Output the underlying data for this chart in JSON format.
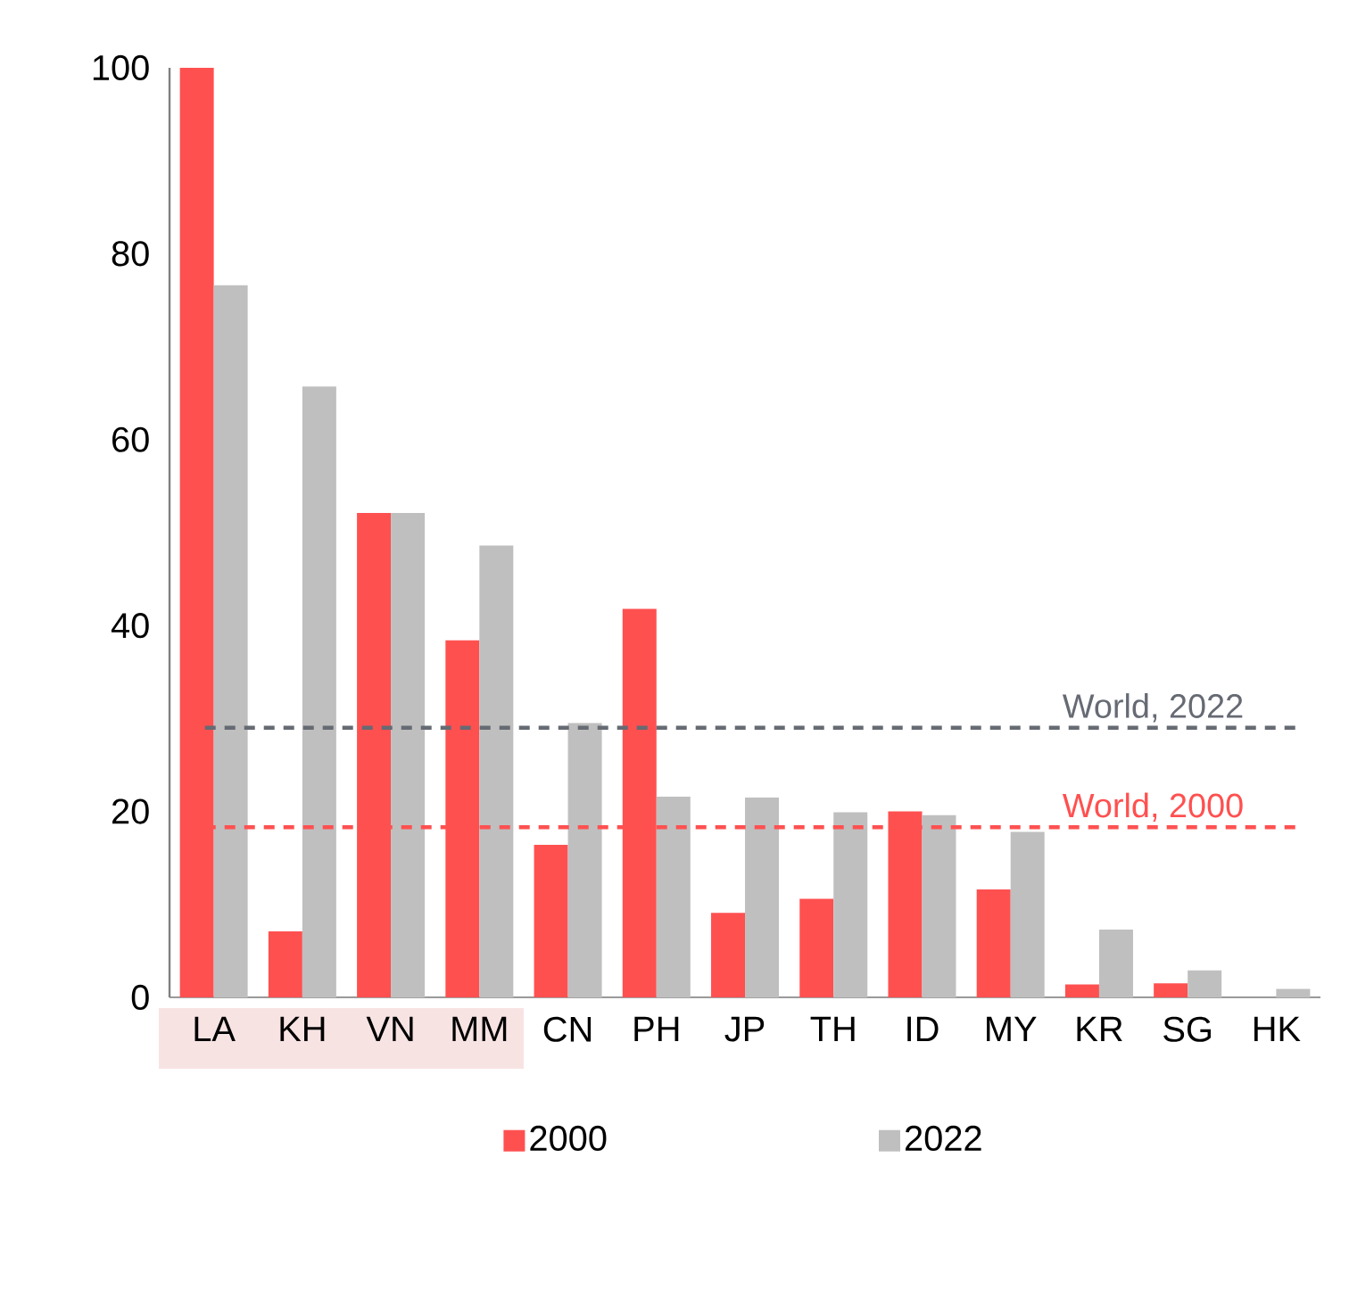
{
  "chart_data": {
    "type": "bar",
    "categories": [
      "LA",
      "KH",
      "VN",
      "MM",
      "CN",
      "PH",
      "JP",
      "TH",
      "ID",
      "MY",
      "KR",
      "SG",
      "HK"
    ],
    "series": [
      {
        "name": "2000",
        "color": "#ff5050",
        "values": [
          100,
          7.1,
          52.1,
          38.4,
          16.4,
          41.8,
          9.1,
          10.6,
          20.0,
          11.6,
          1.4,
          1.5,
          0
        ]
      },
      {
        "name": "2022",
        "color": "#bfbfbf",
        "values": [
          76.6,
          65.7,
          52.1,
          48.6,
          29.5,
          21.6,
          21.5,
          19.9,
          19.6,
          17.8,
          7.3,
          2.9,
          0.9
        ]
      }
    ],
    "ylim": [
      0,
      100
    ],
    "yticks": [
      0,
      20,
      40,
      60,
      80,
      100
    ],
    "ref_lines": [
      {
        "axis": "y",
        "value": 29.0,
        "label": "World, 2022",
        "color": "#666a73",
        "line_style": "dashed"
      },
      {
        "axis": "y",
        "value": 18.3,
        "label": "World, 2000",
        "color": "#ff5050",
        "line_style": "dashed"
      }
    ],
    "legend": "bottom",
    "grid": false
  }
}
